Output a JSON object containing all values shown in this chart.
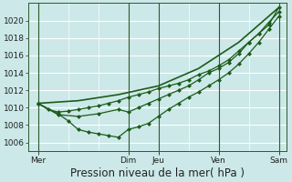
{
  "background_color": "#cce8e8",
  "grid_color": "#b8d8d8",
  "line_color": "#1a5c1a",
  "ylim": [
    1005,
    1022
  ],
  "yticks": [
    1006,
    1008,
    1010,
    1012,
    1014,
    1016,
    1018,
    1020
  ],
  "xlabel": "Pression niveau de la mer( hPa )",
  "xlabel_fontsize": 8.5,
  "tick_fontsize": 6.5,
  "day_labels": [
    "Mer",
    "Dim",
    "Jeu",
    "Ven",
    "Sam"
  ],
  "day_positions": [
    0,
    72,
    96,
    144,
    192
  ],
  "xlim": [
    -8,
    198
  ],
  "series": [
    {
      "x": [
        0,
        8,
        16,
        24,
        32,
        40,
        48,
        56,
        64,
        72,
        80,
        88,
        96,
        104,
        112,
        120,
        128,
        136,
        144,
        152,
        160,
        168,
        176,
        184,
        192
      ],
      "y": [
        1010.5,
        1009.8,
        1009.5,
        1009.6,
        1009.8,
        1010.0,
        1010.2,
        1010.5,
        1010.8,
        1011.2,
        1011.5,
        1011.8,
        1012.2,
        1012.5,
        1012.8,
        1013.2,
        1013.8,
        1014.2,
        1014.8,
        1015.5,
        1016.5,
        1017.5,
        1018.5,
        1019.5,
        1021.5
      ],
      "marker": "D",
      "markersize": 2.0,
      "linewidth": 0.9
    },
    {
      "x": [
        0,
        16,
        32,
        48,
        64,
        72,
        80,
        88,
        96,
        104,
        112,
        120,
        128,
        136,
        144,
        152,
        160,
        168,
        176,
        184,
        192
      ],
      "y": [
        1010.5,
        1009.2,
        1009.0,
        1009.3,
        1009.8,
        1009.5,
        1010.0,
        1010.5,
        1011.0,
        1011.5,
        1012.0,
        1012.5,
        1013.2,
        1014.0,
        1014.5,
        1015.2,
        1016.2,
        1017.5,
        1018.5,
        1019.8,
        1021.0
      ],
      "marker": "D",
      "markersize": 2.0,
      "linewidth": 0.9
    },
    {
      "x": [
        0,
        16,
        24,
        32,
        40,
        48,
        56,
        64,
        72,
        80,
        88,
        96,
        104,
        112,
        120,
        128,
        136,
        144,
        152,
        160,
        168,
        176,
        184,
        192
      ],
      "y": [
        1010.5,
        1009.3,
        1008.5,
        1007.5,
        1007.2,
        1007.0,
        1006.8,
        1006.6,
        1007.5,
        1007.8,
        1008.2,
        1009.0,
        1009.8,
        1010.5,
        1011.2,
        1011.8,
        1012.5,
        1013.2,
        1014.0,
        1015.0,
        1016.2,
        1017.5,
        1019.0,
        1020.5
      ],
      "marker": "D",
      "markersize": 2.0,
      "linewidth": 0.9
    },
    {
      "x": [
        0,
        32,
        64,
        96,
        128,
        160,
        192
      ],
      "y": [
        1010.5,
        1010.8,
        1011.5,
        1012.5,
        1014.5,
        1017.5,
        1021.5
      ],
      "marker": null,
      "markersize": 0,
      "linewidth": 1.2
    }
  ],
  "vline_positions": [
    0,
    72,
    96,
    144,
    192
  ],
  "vline_color": "#2d5a2d",
  "vline_linewidth": 0.8
}
